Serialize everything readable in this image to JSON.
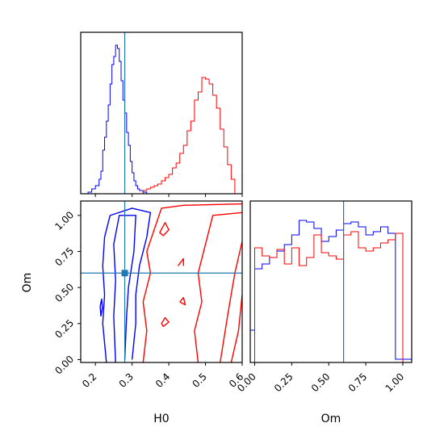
{
  "chart_data": {
    "type": "corner",
    "colors": {
      "series_a": "#0000ff",
      "series_b": "#ff0000",
      "truth": "#1f77b4",
      "frame": "#000000"
    },
    "truth": {
      "H0": 0.28,
      "Om": 0.6
    },
    "panels": [
      {
        "id": "hist_H0",
        "type": "histogram-step",
        "xlim": [
          0.16,
          0.6
        ],
        "ylim": [
          0,
          1.0
        ],
        "show_y_ticks": false,
        "xticks": [
          0.2,
          0.3,
          0.4,
          0.5,
          0.6
        ],
        "show_x_ticklabels": false,
        "truth_x": 0.28,
        "bin_edges": [
          0.18,
          0.19,
          0.2,
          0.21,
          0.22,
          0.225,
          0.23,
          0.235,
          0.24,
          0.245,
          0.25,
          0.255,
          0.26,
          0.265,
          0.27,
          0.275,
          0.28,
          0.285,
          0.29,
          0.295,
          0.3,
          0.305,
          0.31,
          0.32,
          0.33,
          0.34,
          0.35,
          0.36,
          0.37,
          0.38,
          0.39,
          0.4,
          0.41,
          0.42,
          0.43,
          0.44,
          0.45,
          0.46,
          0.47,
          0.48,
          0.49,
          0.5,
          0.51,
          0.52,
          0.53,
          0.54,
          0.55,
          0.56,
          0.57,
          0.58,
          0.59,
          0.6
        ],
        "series": [
          {
            "name": "",
            "color": "#0000ff",
            "edges": [
              0.18,
              0.19,
              0.2,
              0.21,
              0.215,
              0.22,
              0.225,
              0.23,
              0.235,
              0.24,
              0.245,
              0.25,
              0.255,
              0.26,
              0.265,
              0.27,
              0.275,
              0.28,
              0.285,
              0.29,
              0.295,
              0.3,
              0.305,
              0.31,
              0.315,
              0.32,
              0.33,
              0.34,
              0.35
            ],
            "values": [
              0.01,
              0.03,
              0.05,
              0.09,
              0.14,
              0.27,
              0.35,
              0.45,
              0.55,
              0.68,
              0.8,
              0.85,
              0.92,
              0.9,
              0.82,
              0.7,
              0.58,
              0.5,
              0.38,
              0.3,
              0.2,
              0.13,
              0.08,
              0.05,
              0.03,
              0.02,
              0.01,
              0.0
            ]
          },
          {
            "name": "",
            "color": "#ff0000",
            "edges": [
              0.33,
              0.34,
              0.35,
              0.36,
              0.37,
              0.38,
              0.39,
              0.4,
              0.41,
              0.42,
              0.43,
              0.44,
              0.45,
              0.46,
              0.47,
              0.48,
              0.49,
              0.5,
              0.51,
              0.52,
              0.53,
              0.54,
              0.55,
              0.56,
              0.57,
              0.58,
              0.59,
              0.6
            ],
            "values": [
              0.02,
              0.03,
              0.04,
              0.05,
              0.06,
              0.08,
              0.1,
              0.12,
              0.16,
              0.19,
              0.25,
              0.3,
              0.39,
              0.45,
              0.58,
              0.63,
              0.72,
              0.71,
              0.68,
              0.61,
              0.53,
              0.4,
              0.29,
              0.18,
              0.09,
              0.0,
              0.0
            ]
          }
        ]
      },
      {
        "id": "contour_H0_Om",
        "type": "contour",
        "xlim": [
          0.16,
          0.6
        ],
        "ylim": [
          -0.02,
          1.1
        ],
        "xticks": [
          0.2,
          0.3,
          0.4,
          0.5,
          0.6
        ],
        "xticklabels": [
          "0.2",
          "0.3",
          "0.4",
          "0.5",
          "0.6"
        ],
        "yticks": [
          0.0,
          0.25,
          0.5,
          0.75,
          1.0
        ],
        "yticklabels": [
          "0.00",
          "0.25",
          "0.50",
          "0.75",
          "1.00"
        ],
        "xlabel": "H0",
        "ylabel": "Om",
        "truth_x": 0.28,
        "truth_y": 0.6,
        "series": [
          {
            "name": "",
            "color": "#0000ff",
            "paths": [
              [
                [
                  0.23,
                  -0.02
                ],
                [
                  0.22,
                  0.25
                ],
                [
                  0.225,
                  0.45
                ],
                [
                  0.22,
                  0.65
                ],
                [
                  0.225,
                  0.85
                ],
                [
                  0.24,
                  1.0
                ],
                [
                  0.3,
                  1.05
                ],
                [
                  0.35,
                  1.02
                ],
                [
                  0.34,
                  0.85
                ],
                [
                  0.32,
                  0.65
                ],
                [
                  0.31,
                  0.45
                ],
                [
                  0.31,
                  0.25
                ],
                [
                  0.3,
                  0.0
                ]
              ],
              [
                [
                  0.255,
                  -0.02
                ],
                [
                  0.25,
                  0.3
                ],
                [
                  0.255,
                  0.55
                ],
                [
                  0.25,
                  0.8
                ],
                [
                  0.265,
                  1.0
                ],
                [
                  0.31,
                  1.0
                ],
                [
                  0.305,
                  0.75
                ],
                [
                  0.29,
                  0.5
                ],
                [
                  0.285,
                  0.3
                ],
                [
                  0.28,
                  0.0
                ]
              ],
              [
                [
                  0.215,
                  0.3
                ],
                [
                  0.213,
                  0.37
                ],
                [
                  0.217,
                  0.42
                ],
                [
                  0.219,
                  0.36
                ],
                [
                  0.215,
                  0.3
                ]
              ]
            ]
          },
          {
            "name": "",
            "color": "#ff0000",
            "paths": [
              [
                [
                  0.33,
                  -0.02
                ],
                [
                  0.34,
                  0.2
                ],
                [
                  0.33,
                  0.4
                ],
                [
                  0.35,
                  0.6
                ],
                [
                  0.34,
                  0.75
                ],
                [
                  0.36,
                  0.9
                ],
                [
                  0.38,
                  1.05
                ],
                [
                  0.44,
                  1.07
                ],
                [
                  0.6,
                  1.08
                ]
              ],
              [
                [
                  0.48,
                  -0.02
                ],
                [
                  0.47,
                  0.2
                ],
                [
                  0.49,
                  0.4
                ],
                [
                  0.48,
                  0.6
                ],
                [
                  0.5,
                  0.8
                ],
                [
                  0.52,
                  1.0
                ],
                [
                  0.6,
                  1.02
                ]
              ],
              [
                [
                  0.54,
                  -0.02
                ],
                [
                  0.56,
                  0.3
                ],
                [
                  0.58,
                  0.6
                ],
                [
                  0.6,
                  0.82
                ]
              ],
              [
                [
                  0.57,
                  -0.02
                ],
                [
                  0.59,
                  0.2
                ],
                [
                  0.6,
                  0.45
                ]
              ],
              [
                [
                  0.375,
                  0.88
                ],
                [
                  0.39,
                  0.95
                ],
                [
                  0.4,
                  0.9
                ],
                [
                  0.385,
                  0.86
                ],
                [
                  0.375,
                  0.88
                ]
              ],
              [
                [
                  0.425,
                  0.65
                ],
                [
                  0.44,
                  0.7
                ],
                [
                  0.44,
                  0.65
                ]
              ],
              [
                [
                  0.38,
                  0.25
                ],
                [
                  0.39,
                  0.29
                ],
                [
                  0.4,
                  0.26
                ],
                [
                  0.385,
                  0.23
                ],
                [
                  0.38,
                  0.25
                ]
              ],
              [
                [
                  0.43,
                  0.4
                ],
                [
                  0.44,
                  0.43
                ],
                [
                  0.445,
                  0.38
                ],
                [
                  0.43,
                  0.4
                ]
              ]
            ]
          }
        ]
      },
      {
        "id": "hist_Om",
        "type": "histogram-step",
        "xlim": [
          -0.03,
          1.06
        ],
        "ylim": [
          0,
          1.0
        ],
        "show_y_ticks": false,
        "xticks": [
          0.0,
          0.25,
          0.5,
          0.75,
          1.0
        ],
        "xticklabels": [
          "0.00",
          "0.25",
          "0.50",
          "0.75",
          "1.00"
        ],
        "xlabel": "Om",
        "truth_x": 0.6,
        "series": [
          {
            "name": "",
            "color": "#0000ff",
            "edges": [
              -0.03,
              0.0,
              0.05,
              0.1,
              0.15,
              0.2,
              0.25,
              0.3,
              0.35,
              0.4,
              0.45,
              0.5,
              0.55,
              0.6,
              0.65,
              0.7,
              0.75,
              0.8,
              0.85,
              0.9,
              0.95,
              1.0,
              1.06
            ],
            "values": [
              0.2,
              0.58,
              0.61,
              0.65,
              0.69,
              0.73,
              0.79,
              0.88,
              0.87,
              0.83,
              0.75,
              0.78,
              0.82,
              0.86,
              0.87,
              0.84,
              0.79,
              0.81,
              0.84,
              0.8,
              0.02,
              0.02
            ]
          },
          {
            "name": "",
            "color": "#ff0000",
            "edges": [
              0.0,
              0.05,
              0.1,
              0.15,
              0.2,
              0.25,
              0.3,
              0.35,
              0.4,
              0.45,
              0.5,
              0.55,
              0.6,
              0.65,
              0.7,
              0.75,
              0.8,
              0.85,
              0.9,
              0.95,
              1.0
            ],
            "values": [
              0.71,
              0.66,
              0.65,
              0.7,
              0.61,
              0.71,
              0.6,
              0.65,
              0.79,
              0.68,
              0.66,
              0.64,
              0.79,
              0.81,
              0.71,
              0.69,
              0.71,
              0.74,
              0.76,
              0.8
            ]
          }
        ]
      }
    ]
  }
}
